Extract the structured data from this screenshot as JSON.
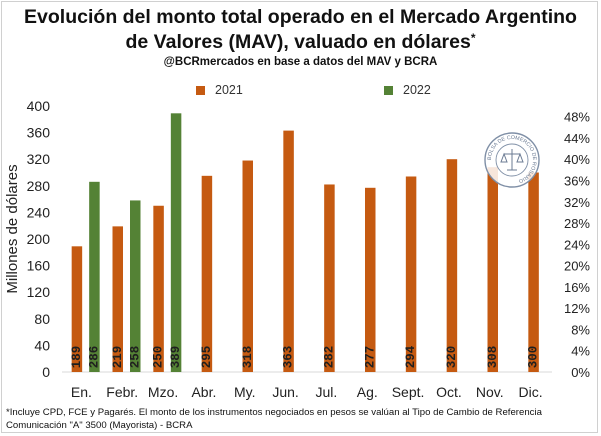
{
  "title": {
    "line1": "Evolución del monto total operado en el Mercado Argentino",
    "line2": "de Valores (MAV), valuado en dólares",
    "line2_mark": "*",
    "subtitle": "@BCRmercados en base a datos del MAV y BCRA"
  },
  "legend": {
    "s2021": "2021",
    "s2022": "2022"
  },
  "colors": {
    "s2021": "#C55A11",
    "s2022": "#548235",
    "label_text": "#1f1f1f",
    "grid": "#d9d9d9"
  },
  "seal": {
    "text": "BOLSA DE COMERCIO DE ROSARIO"
  },
  "footnote": {
    "line1": "*Incluye CPD, FCE y Pagarés. El monto de los instrumentos  negociados en pesos se valúan al Tipo de Cambio de Referencia",
    "line2": "Comunicación \"A\" 3500 (Mayorista) - BCRA"
  },
  "chart_data": {
    "type": "bar",
    "title": "Evolución del monto total operado en el Mercado Argentino de Valores (MAV), valuado en dólares*",
    "ylabel": "Millones de dólares",
    "ylim": [
      0,
      400
    ],
    "yticks": [
      0,
      40,
      80,
      120,
      160,
      200,
      240,
      280,
      320,
      360,
      400
    ],
    "y2lim": [
      0,
      50
    ],
    "y2ticks": [
      "0%",
      "4%",
      "8%",
      "12%",
      "16%",
      "20%",
      "24%",
      "28%",
      "32%",
      "36%",
      "40%",
      "44%",
      "48%"
    ],
    "categories": [
      "En.",
      "Febr.",
      "Mzo.",
      "Abr.",
      "My.",
      "Jun.",
      "Jul.",
      "Ag.",
      "Sept.",
      "Oct.",
      "Nov.",
      "Dic."
    ],
    "series": [
      {
        "name": "2021",
        "values": [
          189,
          219,
          250,
          295,
          318,
          363,
          282,
          277,
          294,
          320,
          308,
          300
        ]
      },
      {
        "name": "2022",
        "values": [
          286,
          258,
          389,
          null,
          null,
          null,
          null,
          null,
          null,
          null,
          null,
          null
        ]
      }
    ],
    "legend_position": "top",
    "grid": false
  }
}
